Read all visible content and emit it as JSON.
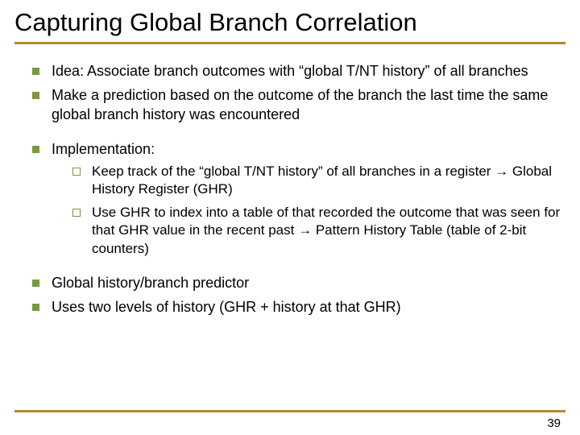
{
  "colors": {
    "bullet_green": "#7a9a3b",
    "underline": "#b08c2e",
    "text": "#000000",
    "bg": "#ffffff"
  },
  "title": "Capturing Global Branch Correlation",
  "b1": "Idea: Associate branch outcomes with “global T/NT history” of all branches",
  "b2": "Make a prediction based on the outcome of the branch the last time the same global branch history was encountered",
  "b3": "Implementation:",
  "s1a": "Keep track of the “global T/NT history” of all branches in a register ",
  "s1b": " Global History Register (GHR)",
  "s2a": "Use GHR to index into a table of that recorded the outcome that was seen for that GHR value in the recent past ",
  "s2b": " Pattern History Table (table of 2-bit counters)",
  "b4": "Global history/branch predictor",
  "b5": "Uses two levels of history (GHR + history at that GHR)",
  "page": "39",
  "arrow": "→"
}
